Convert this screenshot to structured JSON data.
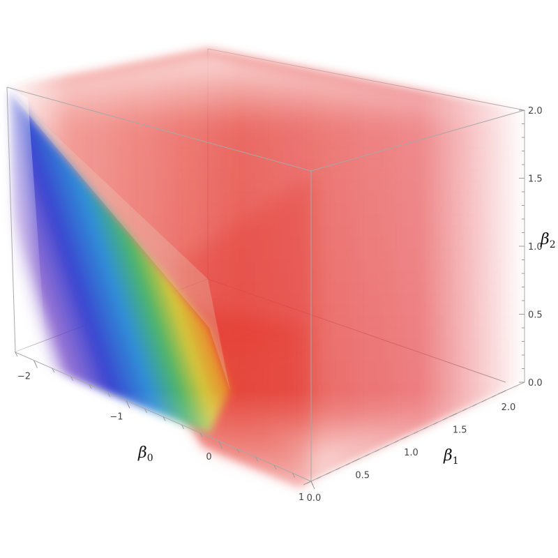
{
  "chart_data": {
    "type": "3d-density",
    "axes": {
      "x": {
        "symbol": "β",
        "subscript": "0",
        "ticks": [
          -2,
          -1,
          0,
          1
        ],
        "tick_labels": [
          "−2",
          "−1",
          "0",
          "1"
        ],
        "range": [
          -2.2,
          1
        ]
      },
      "y": {
        "symbol": "β",
        "subscript": "1",
        "ticks": [
          0,
          0.5,
          1,
          1.5,
          2
        ],
        "tick_labels": [
          "0.0",
          "0.5",
          "1.0",
          "1.5",
          "2.0"
        ],
        "range": [
          0,
          2
        ]
      },
      "z": {
        "symbol": "β",
        "subscript": "2",
        "ticks": [
          0,
          0.5,
          1,
          1.5,
          2
        ],
        "tick_labels": [
          "0.0",
          "0.5",
          "1.0",
          "1.5",
          "2.0"
        ],
        "range": [
          0,
          2
        ]
      }
    },
    "boundary_surface": "diagonal plane separating a rainbow-shaded region (low β0) from a red region",
    "colors": {
      "red_region": "#e63a30",
      "rainbow": [
        "#6a3fc4",
        "#3b48d0",
        "#2f8fd8",
        "#45b26b",
        "#d7c437",
        "#e8862a",
        "#e2382c"
      ],
      "box_edge": "#a8a8a8"
    },
    "grid": false,
    "boxed": true
  }
}
